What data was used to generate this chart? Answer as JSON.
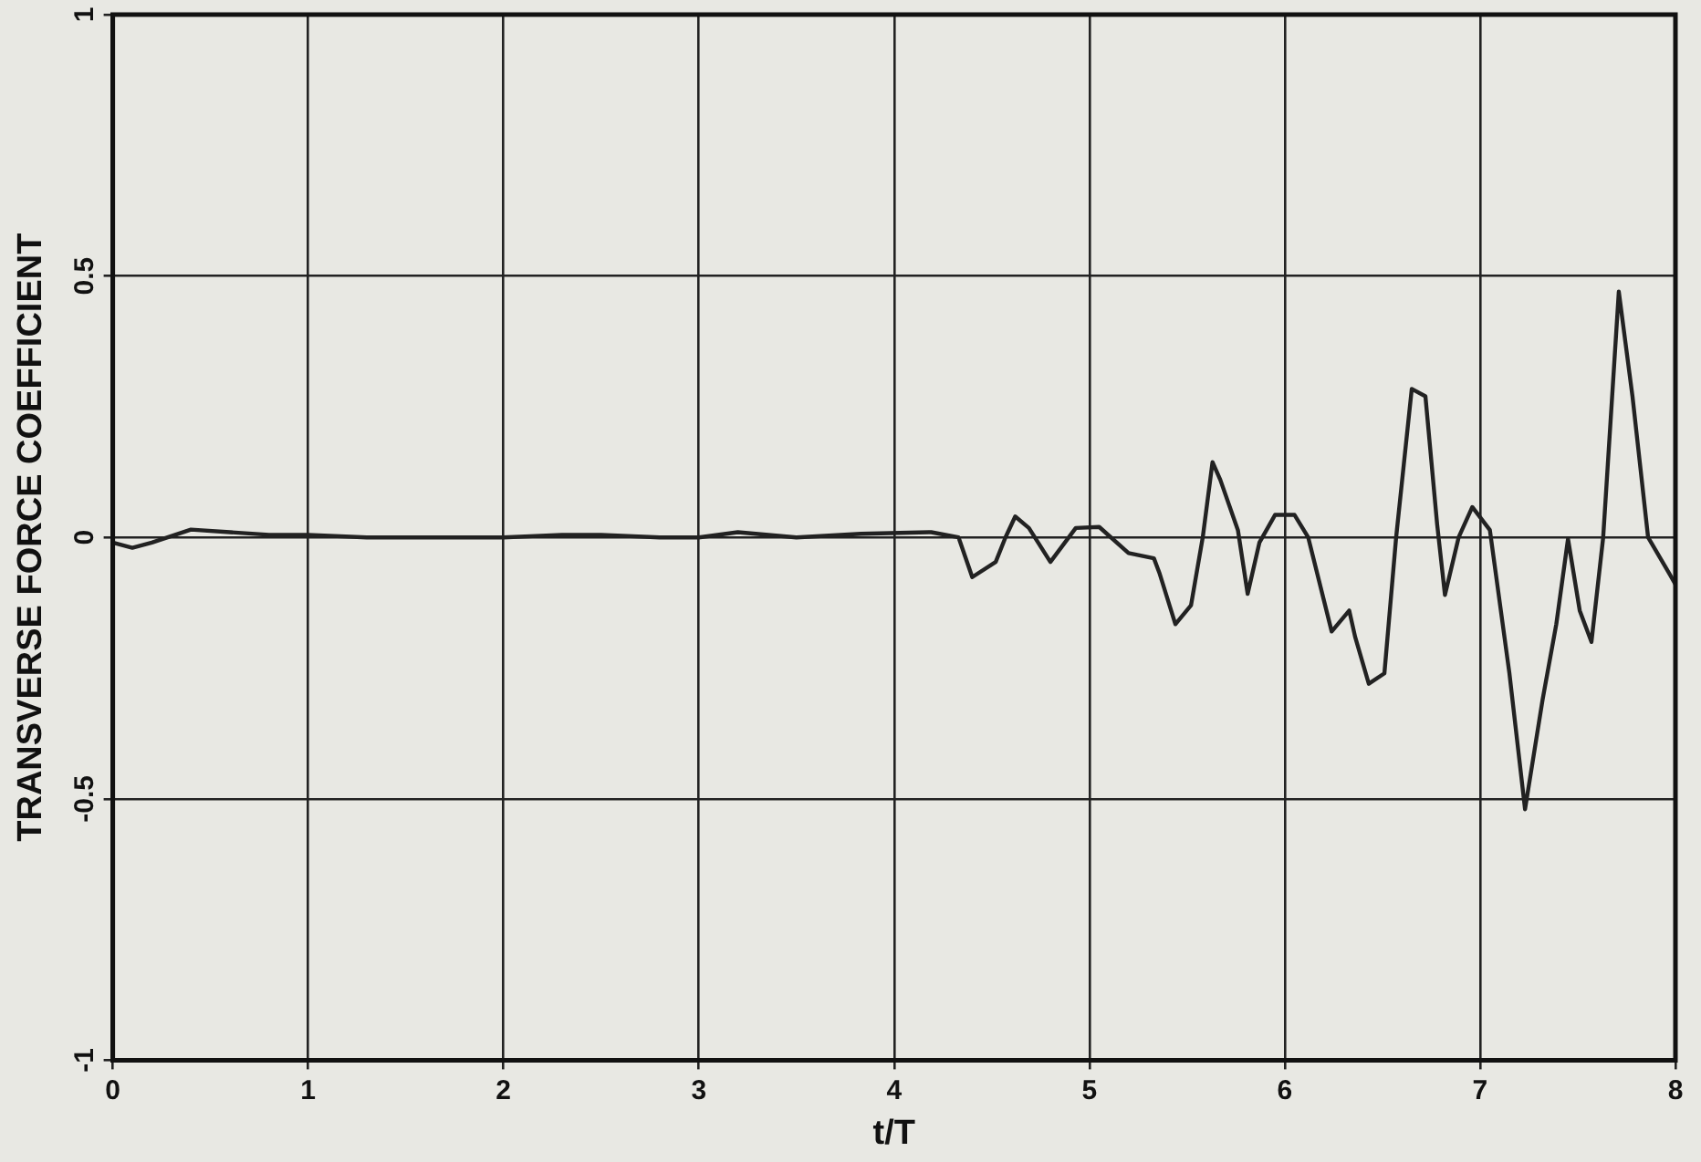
{
  "chart_data": {
    "type": "line",
    "xlabel": "t/T",
    "ylabel": "TRANSVERSE FORCE COEFFICIENT",
    "x": [
      0,
      0.1,
      0.2,
      0.4,
      0.6,
      0.8,
      1,
      1.3,
      1.6,
      2,
      2.3,
      2.5,
      2.8,
      3,
      3.2,
      3.5,
      3.83,
      4.19,
      4.33,
      4.4,
      4.52,
      4.57,
      4.62,
      4.69,
      4.8,
      4.93,
      5.05,
      5.2,
      5.33,
      5.36,
      5.44,
      5.52,
      5.58,
      5.63,
      5.67,
      5.76,
      5.81,
      5.87,
      5.95,
      6.05,
      6.12,
      6.24,
      6.33,
      6.36,
      6.43,
      6.51,
      6.57,
      6.65,
      6.72,
      6.78,
      6.82,
      6.89,
      6.96,
      7.05,
      7.15,
      7.23,
      7.32,
      7.39,
      7.45,
      7.51,
      7.57,
      7.63,
      7.71,
      7.78,
      7.86,
      7.97,
      8
    ],
    "series": [
      {
        "color": "#222222",
        "values": [
          -0.01,
          -0.02,
          -0.01,
          0.015,
          0.01,
          0.005,
          0.005,
          0,
          0,
          0,
          0.005,
          0.005,
          0,
          0,
          0.01,
          0,
          0.007,
          0.01,
          0,
          -0.076,
          -0.047,
          0,
          0.04,
          0.018,
          -0.047,
          0.018,
          0.02,
          -0.03,
          -0.04,
          -0.07,
          -0.166,
          -0.13,
          0,
          0.144,
          0.11,
          0.014,
          -0.108,
          -0.01,
          0.043,
          0.043,
          0,
          -0.18,
          -0.14,
          -0.19,
          -0.28,
          -0.26,
          0,
          0.284,
          0.27,
          0.025,
          -0.11,
          0,
          0.058,
          0.014,
          -0.26,
          -0.52,
          -0.31,
          -0.166,
          -0.003,
          -0.14,
          -0.2,
          0,
          0.47,
          0.27,
          0,
          -0.07,
          -0.09
        ]
      }
    ],
    "xlim": [
      0,
      8
    ],
    "xticks": [
      0,
      1,
      2,
      3,
      4,
      5,
      6,
      7,
      8
    ],
    "ylim": [
      -1,
      1
    ],
    "yticks": [
      -1,
      -0.5,
      0,
      0.5,
      1
    ],
    "grid": true,
    "legend": false,
    "marker": "none",
    "line_style": "solid"
  }
}
